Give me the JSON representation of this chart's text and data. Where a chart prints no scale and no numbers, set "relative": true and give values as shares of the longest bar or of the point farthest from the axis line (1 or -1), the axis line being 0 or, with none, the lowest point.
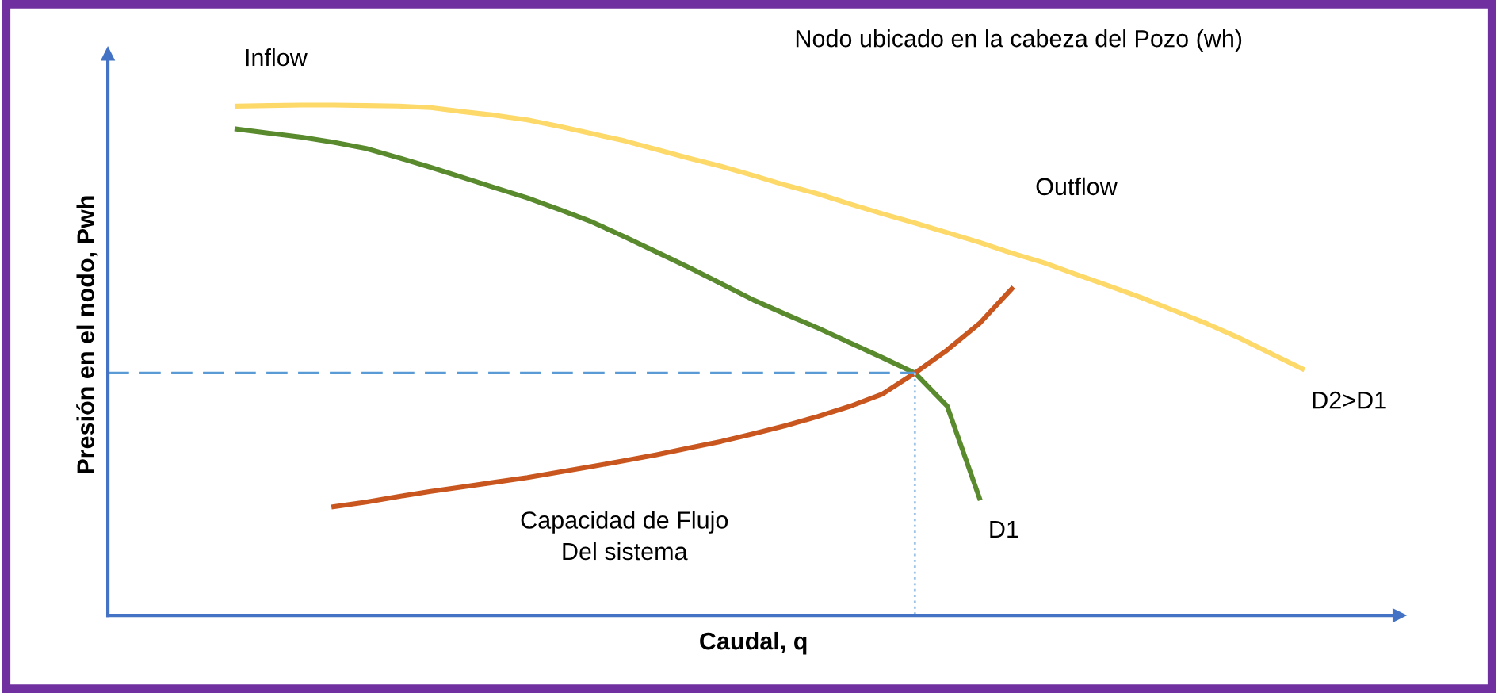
{
  "chart_data": {
    "type": "line",
    "relative": true,
    "title": "Nodo ubicado en la cabeza del Pozo (wh)",
    "xlabel": "Caudal, q",
    "ylabel": "Presión en el nodo, Pwh",
    "marker": "none",
    "annotations": [
      "Outflow",
      "Capacidad de Flujo\nDel sistema",
      "Inflow"
    ],
    "categories": [
      null,
      null,
      null,
      null,
      null,
      null,
      null,
      null,
      null,
      null,
      null,
      null,
      null,
      null,
      null,
      null,
      null,
      null,
      null,
      null,
      null,
      null,
      null,
      null,
      null,
      null,
      null,
      null,
      null,
      null,
      null,
      null,
      null,
      null,
      null,
      null,
      null,
      null,
      null,
      null,
      null
    ],
    "series": [
      {
        "name": "D2>D1",
        "color": "#fdd96a",
        "values": [
          null,
          null,
          null,
          null,
          0.998,
          0.999,
          1.0,
          1.0,
          0.999,
          0.998,
          0.995,
          0.987,
          0.98,
          0.971,
          0.958,
          0.944,
          0.93,
          0.913,
          0.896,
          0.88,
          0.862,
          0.843,
          0.826,
          0.806,
          0.787,
          0.769,
          0.75,
          0.731,
          0.71,
          0.691,
          0.668,
          0.646,
          0.623,
          0.598,
          0.573,
          0.545,
          0.514,
          0.483,
          null,
          null,
          null
        ]
      },
      {
        "name": "D1",
        "color": "#5a8a2e",
        "values": [
          null,
          null,
          null,
          null,
          0.953,
          0.945,
          0.937,
          0.927,
          0.915,
          0.897,
          0.878,
          0.858,
          0.838,
          0.818,
          0.795,
          0.771,
          0.742,
          0.712,
          0.682,
          0.65,
          0.618,
          0.59,
          0.563,
          0.534,
          0.505,
          0.475,
          0.41,
          0.23,
          null,
          null,
          null,
          null,
          null,
          null,
          null,
          null,
          null,
          null,
          null,
          null,
          null
        ]
      },
      {
        "color": "#c8561e",
        "values": [
          null,
          null,
          null,
          null,
          null,
          null,
          null,
          0.213,
          0.222,
          0.233,
          0.243,
          0.252,
          0.261,
          0.27,
          0.281,
          0.292,
          0.303,
          0.315,
          0.328,
          0.341,
          0.356,
          0.372,
          0.39,
          0.41,
          0.434,
          0.475,
          0.52,
          0.572,
          0.64,
          null,
          null,
          null,
          null,
          null,
          null,
          null,
          null,
          null,
          null,
          null,
          null
        ]
      },
      {
        "color": "#5b9bd5",
        "line_style": "dashed",
        "values": [
          0.475,
          0.475,
          0.475,
          0.475,
          0.475,
          0.475,
          0.475,
          0.475,
          0.475,
          0.475,
          0.475,
          0.475,
          0.475,
          0.475,
          0.475,
          0.475,
          0.475,
          0.475,
          0.475,
          0.475,
          0.475,
          0.475,
          0.475,
          0.475,
          0.475,
          0.475,
          null,
          null,
          null,
          null,
          null,
          null,
          null,
          null,
          null,
          null,
          null,
          null,
          null,
          null,
          null
        ]
      }
    ]
  }
}
